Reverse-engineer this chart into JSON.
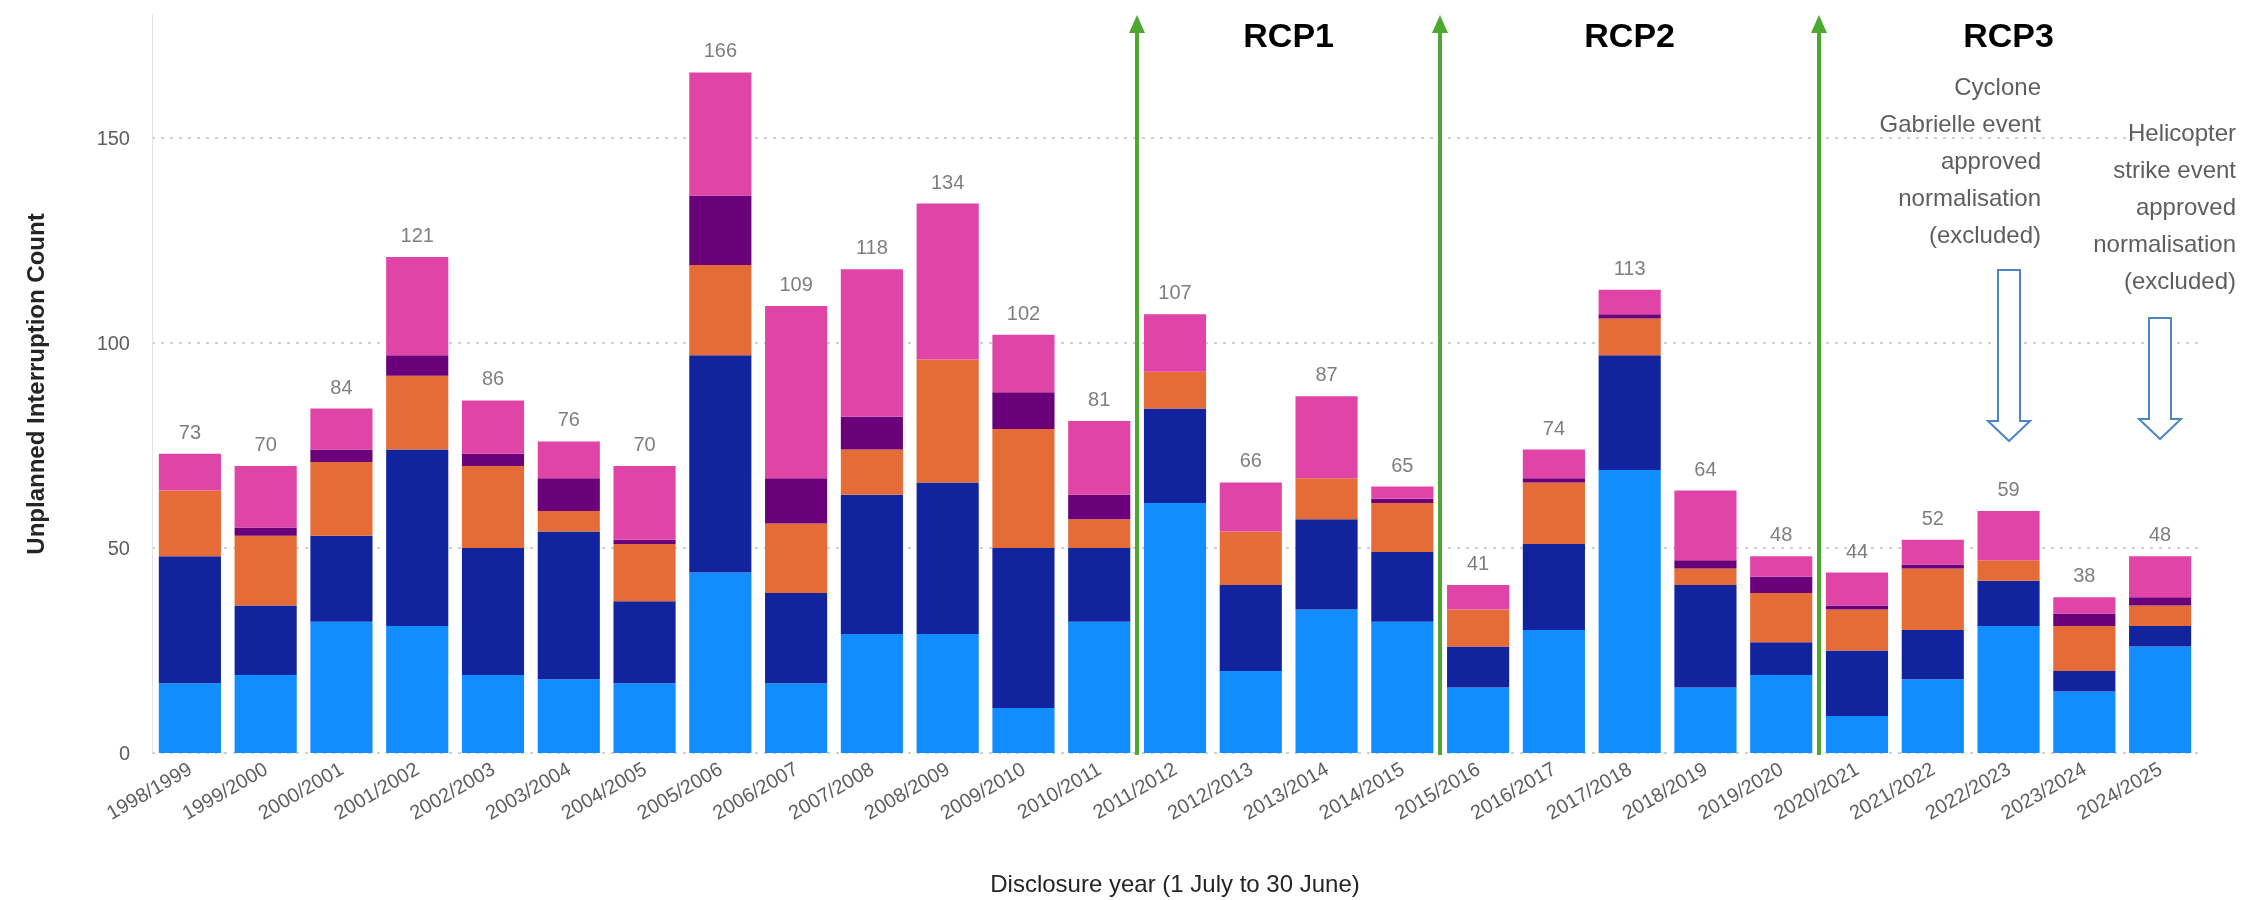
{
  "chart_data": {
    "type": "bar",
    "stacked": true,
    "xlabel": "Disclosure year (1 July to 30 June)",
    "ylabel": "Unplanned Interruption Count",
    "categories": [
      "1998/1999",
      "1999/2000",
      "2000/2001",
      "2001/2002",
      "2002/2003",
      "2003/2004",
      "2004/2005",
      "2005/2006",
      "2006/2007",
      "2007/2008",
      "2008/2009",
      "2009/2010",
      "2010/2011",
      "2011/2012",
      "2012/2013",
      "2013/2014",
      "2014/2015",
      "2015/2016",
      "2016/2017",
      "2017/2018",
      "2018/2019",
      "2019/2020",
      "2020/2021",
      "2021/2022",
      "2022/2023",
      "2023/2024",
      "2024/2025"
    ],
    "series": [
      {
        "color": "#118dff",
        "values": [
          17,
          19,
          32,
          31,
          19,
          18,
          17,
          44,
          17,
          29,
          29,
          11,
          32,
          61,
          20,
          35,
          32,
          16,
          30,
          69,
          16,
          19,
          9,
          18,
          31,
          15,
          26
        ]
      },
      {
        "color": "#12239e",
        "values": [
          31,
          17,
          21,
          43,
          31,
          36,
          20,
          53,
          22,
          34,
          37,
          39,
          18,
          23,
          21,
          22,
          17,
          10,
          21,
          28,
          25,
          8,
          16,
          12,
          11,
          5,
          5
        ]
      },
      {
        "color": "#e66c37",
        "values": [
          16,
          17,
          18,
          18,
          20,
          5,
          14,
          22,
          17,
          11,
          30,
          29,
          7,
          9,
          13,
          10,
          12,
          9,
          15,
          9,
          4,
          12,
          10,
          15,
          5,
          11,
          5
        ]
      },
      {
        "color": "#6b007b",
        "values": [
          0,
          2,
          3,
          5,
          3,
          8,
          1,
          17,
          11,
          8,
          0,
          9,
          6,
          0,
          0,
          0,
          1,
          0,
          1,
          1,
          2,
          4,
          1,
          1,
          0,
          3,
          2
        ]
      },
      {
        "color": "#e044a7",
        "values": [
          9,
          15,
          10,
          24,
          13,
          9,
          18,
          30,
          42,
          36,
          38,
          14,
          18,
          14,
          12,
          20,
          3,
          6,
          7,
          6,
          17,
          5,
          8,
          6,
          12,
          4,
          10
        ]
      }
    ],
    "totals": [
      "73",
      "70",
      "84",
      "121",
      "86",
      "76",
      "70",
      "166",
      "109",
      "118",
      "134",
      "102",
      "81",
      "107",
      "66",
      "87",
      "65",
      "41",
      "74",
      "113",
      "64",
      "48",
      "44",
      "52",
      "59",
      "38",
      "48"
    ],
    "ylim": [
      0,
      180
    ],
    "yticks": [
      0,
      50,
      100,
      150
    ],
    "grid": "y",
    "annotations": [
      "RCP1",
      "RCP2",
      "RCP3",
      "Cyclone Gabrielle event approved normalisation (excluded)",
      "Helicopter strike event approved normalisation (excluded)"
    ]
  }
}
